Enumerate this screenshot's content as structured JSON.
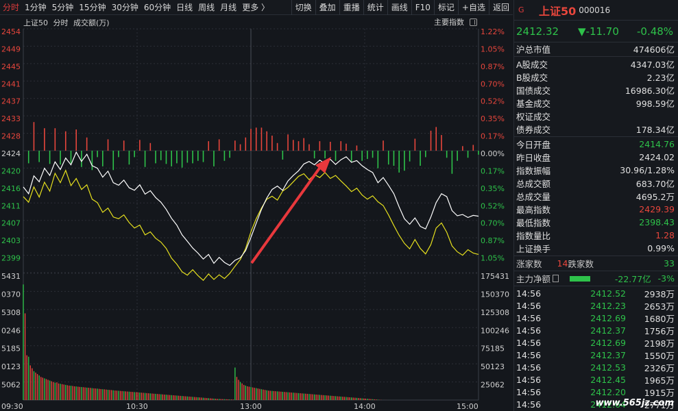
{
  "toolbar": {
    "periods": [
      "分时",
      "1分钟",
      "5分钟",
      "15分钟",
      "30分钟",
      "60分钟",
      "日线",
      "周线",
      "月线",
      "更多 〉"
    ],
    "active_period": "分时",
    "actions": [
      "切换",
      "叠加",
      "重播",
      "统计",
      "画线",
      "F10",
      "标记",
      "+自选",
      "返回"
    ]
  },
  "chart_header": {
    "index_name": "上证50",
    "mode": "分时",
    "volume_label": "成交额(万)",
    "indicator": "主要指数"
  },
  "colors": {
    "up": "#e8463c",
    "down": "#2ec24a",
    "price_line": "#ffffff",
    "avg_line": "#e6e01e",
    "arrow": "#e8383c",
    "grid": "#2c2f37"
  },
  "chart_data": {
    "type": "line",
    "price_axis": [
      "2454",
      "2449",
      "2445",
      "2441",
      "2437",
      "2433",
      "2428",
      "2424",
      "2420",
      "2416",
      "2411",
      "2407",
      "2403",
      "2399"
    ],
    "pct_axis": [
      "1.22%",
      "1.05%",
      "0.87%",
      "0.70%",
      "0.52%",
      "0.35%",
      "0.17%",
      "0.00%",
      "0.17%",
      "0.35%",
      "0.52%",
      "0.70%",
      "0.87%",
      "1.05%"
    ],
    "prev_close": 2424.02,
    "ylim": [
      2399,
      2454
    ],
    "volume_axis_left": [
      "5431",
      "0370",
      "5308",
      "0246",
      "5185",
      "0123",
      "5062"
    ],
    "volume_axis_right": [
      "175431",
      "150370",
      "125308",
      "100246",
      "75185",
      "50123",
      "25062"
    ],
    "volume_ylim": [
      0,
      175431
    ],
    "time_axis": [
      "09:30",
      "10:30",
      "13:00",
      "14:00",
      "15:00"
    ],
    "price_series": [
      [
        0,
        2419.2
      ],
      [
        3,
        2417.6
      ],
      [
        6,
        2421.8
      ],
      [
        9,
        2420.4
      ],
      [
        12,
        2423.6
      ],
      [
        15,
        2421.9
      ],
      [
        18,
        2425.1
      ],
      [
        21,
        2423.3
      ],
      [
        24,
        2426.0
      ],
      [
        27,
        2424.4
      ],
      [
        30,
        2427.4
      ],
      [
        33,
        2425.2
      ],
      [
        36,
        2426.9
      ],
      [
        39,
        2424.2
      ],
      [
        42,
        2423.6
      ],
      [
        45,
        2421.5
      ],
      [
        48,
        2422.9
      ],
      [
        51,
        2420.2
      ],
      [
        54,
        2419.6
      ],
      [
        57,
        2420.8
      ],
      [
        60,
        2419.0
      ],
      [
        63,
        2418.4
      ],
      [
        66,
        2419.7
      ],
      [
        69,
        2417.5
      ],
      [
        72,
        2418.3
      ],
      [
        75,
        2416.7
      ],
      [
        78,
        2415.6
      ],
      [
        81,
        2413.9
      ],
      [
        84,
        2411.8
      ],
      [
        87,
        2410.2
      ],
      [
        90,
        2407.9
      ],
      [
        93,
        2406.4
      ],
      [
        96,
        2404.8
      ],
      [
        99,
        2403.6
      ],
      [
        102,
        2402.2
      ],
      [
        105,
        2403.3
      ],
      [
        108,
        2401.2
      ],
      [
        111,
        2402.6
      ],
      [
        114,
        2401.4
      ],
      [
        117,
        2400.7
      ],
      [
        120,
        2401.9
      ],
      [
        123,
        2402.5
      ],
      [
        126,
        2404.2
      ],
      [
        129,
        2407.3
      ],
      [
        132,
        2410.6
      ],
      [
        135,
        2413.9
      ],
      [
        138,
        2416.6
      ],
      [
        141,
        2418.6
      ],
      [
        144,
        2419.4
      ],
      [
        147,
        2418.4
      ],
      [
        150,
        2420.6
      ],
      [
        153,
        2421.9
      ],
      [
        156,
        2423.0
      ],
      [
        159,
        2424.6
      ],
      [
        162,
        2425.2
      ],
      [
        165,
        2424.4
      ],
      [
        168,
        2425.5
      ],
      [
        171,
        2424.7
      ],
      [
        174,
        2425.7
      ],
      [
        177,
        2424.5
      ],
      [
        180,
        2425.6
      ],
      [
        183,
        2426.3
      ],
      [
        186,
        2425.0
      ],
      [
        189,
        2425.4
      ],
      [
        192,
        2424.2
      ],
      [
        195,
        2423.3
      ],
      [
        198,
        2422.6
      ],
      [
        201,
        2420.2
      ],
      [
        204,
        2421.4
      ],
      [
        207,
        2419.6
      ],
      [
        210,
        2417.6
      ],
      [
        213,
        2414.5
      ],
      [
        216,
        2411.7
      ],
      [
        219,
        2410.4
      ],
      [
        222,
        2411.9
      ],
      [
        225,
        2409.9
      ],
      [
        228,
        2409.3
      ],
      [
        231,
        2412.1
      ],
      [
        234,
        2415.5
      ],
      [
        237,
        2417.6
      ],
      [
        240,
        2416.9
      ],
      [
        243,
        2413.6
      ],
      [
        246,
        2412.4
      ],
      [
        249,
        2412.7
      ],
      [
        252,
        2412.0
      ],
      [
        255,
        2412.5
      ],
      [
        258,
        2412.3
      ]
    ],
    "avg_series": [
      [
        0,
        2416.9
      ],
      [
        3,
        2415.6
      ],
      [
        6,
        2419.2
      ],
      [
        9,
        2416.8
      ],
      [
        12,
        2420.3
      ],
      [
        15,
        2418.2
      ],
      [
        18,
        2422.4
      ],
      [
        21,
        2420.2
      ],
      [
        24,
        2423.1
      ],
      [
        27,
        2419.5
      ],
      [
        30,
        2421.2
      ],
      [
        33,
        2418.6
      ],
      [
        36,
        2419.7
      ],
      [
        39,
        2416.3
      ],
      [
        42,
        2415.5
      ],
      [
        45,
        2413.2
      ],
      [
        48,
        2414.2
      ],
      [
        51,
        2412.1
      ],
      [
        54,
        2411.7
      ],
      [
        57,
        2412.6
      ],
      [
        60,
        2410.8
      ],
      [
        63,
        2409.5
      ],
      [
        66,
        2410.2
      ],
      [
        69,
        2407.9
      ],
      [
        72,
        2408.6
      ],
      [
        75,
        2407.1
      ],
      [
        78,
        2406.2
      ],
      [
        81,
        2404.7
      ],
      [
        84,
        2402.4
      ],
      [
        87,
        2401.0
      ],
      [
        90,
        2399.2
      ],
      [
        93,
        2398.4
      ],
      [
        96,
        2399.7
      ],
      [
        99,
        2398.3
      ],
      [
        102,
        2397.2
      ],
      [
        105,
        2398.7
      ],
      [
        108,
        2397.4
      ],
      [
        111,
        2398.5
      ],
      [
        114,
        2397.6
      ],
      [
        117,
        2398.8
      ],
      [
        120,
        2400.5
      ],
      [
        123,
        2402.1
      ],
      [
        126,
        2404.7
      ],
      [
        129,
        2408.6
      ],
      [
        132,
        2411.7
      ],
      [
        135,
        2414.2
      ],
      [
        138,
        2416.3
      ],
      [
        141,
        2417.0
      ],
      [
        144,
        2416.1
      ],
      [
        147,
        2418.2
      ],
      [
        150,
        2419.1
      ],
      [
        153,
        2420.4
      ],
      [
        156,
        2421.7
      ],
      [
        159,
        2422.3
      ],
      [
        162,
        2420.9
      ],
      [
        165,
        2422.1
      ],
      [
        168,
        2421.4
      ],
      [
        171,
        2422.6
      ],
      [
        174,
        2421.2
      ],
      [
        177,
        2421.9
      ],
      [
        180,
        2420.6
      ],
      [
        183,
        2419.4
      ],
      [
        186,
        2418.1
      ],
      [
        189,
        2418.9
      ],
      [
        192,
        2417.3
      ],
      [
        195,
        2416.3
      ],
      [
        198,
        2417.1
      ],
      [
        201,
        2415.7
      ],
      [
        204,
        2414.8
      ],
      [
        207,
        2412.6
      ],
      [
        210,
        2410.1
      ],
      [
        213,
        2407.8
      ],
      [
        216,
        2405.9
      ],
      [
        219,
        2404.6
      ],
      [
        222,
        2406.8
      ],
      [
        225,
        2404.7
      ],
      [
        228,
        2403.4
      ],
      [
        231,
        2405.6
      ],
      [
        234,
        2409.5
      ],
      [
        237,
        2410.7
      ],
      [
        240,
        2408.5
      ],
      [
        243,
        2405.3
      ],
      [
        246,
        2403.9
      ],
      [
        249,
        2403.1
      ],
      [
        252,
        2404.4
      ],
      [
        255,
        2403.6
      ],
      [
        258,
        2403.3
      ]
    ],
    "volume_series": [
      160000,
      120000,
      62000,
      60000,
      48000,
      44000,
      40000,
      38000,
      36000,
      34000,
      32000,
      31000,
      30000,
      29000,
      28000,
      27000,
      26000,
      25000,
      24000,
      24500,
      23000,
      22500,
      22000,
      21500,
      21000,
      20500,
      20000,
      19800,
      19500,
      19000,
      18800,
      18500,
      18200,
      18000,
      17800,
      17500,
      17200,
      17000,
      16800,
      16500,
      16200,
      16000,
      15800,
      15500,
      15200,
      15000,
      14800,
      14500,
      14200,
      14000,
      13800,
      13500,
      13200,
      13000,
      12800,
      12600,
      12400,
      12200,
      12000,
      11800,
      11600,
      11400,
      11200,
      11000,
      10800,
      10600,
      10400,
      10200,
      10000,
      9800,
      9600,
      9400,
      9200,
      9000,
      8800,
      8600,
      8400,
      8200,
      8000,
      7800,
      7600,
      7400,
      7200,
      7000,
      6800,
      6600,
      6400,
      6200,
      6000,
      5800,
      5600,
      5400,
      5200,
      5000,
      4800,
      4600,
      4400,
      4200,
      4000,
      3800,
      3600,
      3400,
      3200,
      3000,
      2800,
      2600,
      2400,
      2200,
      2000,
      1800,
      1600,
      1500,
      1400,
      1300,
      1200,
      1100,
      1000,
      900,
      800,
      700,
      45000,
      32000,
      28000,
      25000,
      23000,
      21000,
      20000,
      19000,
      18500,
      18000,
      17500,
      17000,
      16500,
      16000,
      15500,
      15000,
      14500,
      14000,
      13500,
      13000,
      12800,
      12600,
      12400,
      12200,
      12000,
      11800,
      11600,
      11400,
      11200,
      11000,
      10800,
      10600,
      10400,
      10200,
      10000,
      9800,
      9600,
      9400,
      9200,
      9000,
      8800,
      8600,
      8400,
      8200,
      8000,
      7800,
      7600,
      7400,
      7200,
      7000,
      6800,
      6600,
      6400,
      6200,
      6000,
      5800,
      5600,
      5400,
      5200,
      5000,
      4800,
      4600,
      4400,
      4200,
      4000,
      3800,
      3600,
      3400,
      3200,
      3000,
      2800,
      2600,
      2400,
      2200,
      2000,
      1800,
      1600,
      1400,
      1200,
      1000,
      800,
      600,
      400,
      200,
      100,
      80,
      60,
      40,
      20,
      10,
      10,
      10,
      10,
      10,
      10,
      10,
      10,
      10,
      10,
      10,
      10,
      10,
      10,
      10,
      10,
      10,
      10,
      10,
      10,
      10,
      10,
      10,
      10,
      10,
      10,
      10,
      10,
      10,
      10,
      10,
      10,
      10,
      10,
      10,
      10,
      10,
      10,
      10,
      10,
      10,
      10,
      10,
      10,
      10,
      10,
      10,
      10,
      10,
      10,
      10,
      10,
      10,
      10,
      10,
      10
    ],
    "total_points": 258
  },
  "panel": {
    "marker": "G",
    "name": "上证50",
    "code": "000016",
    "price": "2412.32",
    "change": "▼-11.70",
    "change_pct": "-0.48%",
    "stats1": [
      {
        "label": "沪总市值",
        "value": "474606亿"
      }
    ],
    "stats2": [
      {
        "label": "A股成交",
        "value": "4347.03亿"
      },
      {
        "label": "B股成交",
        "value": "2.23亿"
      },
      {
        "label": "国债成交",
        "value": "16986.30亿"
      },
      {
        "label": "基金成交",
        "value": "998.59亿"
      },
      {
        "label": "权证成交",
        "value": ""
      },
      {
        "label": "债券成交",
        "value": "178.34亿"
      }
    ],
    "stats3": [
      {
        "label": "今日开盘",
        "value": "2414.76",
        "color": "green"
      },
      {
        "label": "昨日收盘",
        "value": "2424.02",
        "color": ""
      },
      {
        "label": "指数振幅",
        "value": "30.96/1.28%",
        "color": ""
      },
      {
        "label": "总成交额",
        "value": "683.70亿",
        "color": ""
      },
      {
        "label": "总成交量",
        "value": "4695.2万",
        "color": ""
      },
      {
        "label": "最高指数",
        "value": "2429.39",
        "color": "red"
      },
      {
        "label": "最低指数",
        "value": "2398.43",
        "color": "green"
      },
      {
        "label": "指数量比",
        "value": "1.28",
        "color": "red"
      },
      {
        "label": "上证换手",
        "value": "0.99%",
        "color": ""
      }
    ],
    "updown": {
      "up_label": "涨家数",
      "up": "14",
      "down_label": "跌家数",
      "down": "33"
    },
    "flow": {
      "label": "主力净额",
      "amount": "-22.77亿",
      "pct": "-3%"
    },
    "ticks": [
      {
        "time": "14:56",
        "price": "2412.52",
        "vol": "2938万"
      },
      {
        "time": "14:56",
        "price": "2412.23",
        "vol": "2653万"
      },
      {
        "time": "14:56",
        "price": "2412.69",
        "vol": "1680万"
      },
      {
        "time": "14:56",
        "price": "2412.37",
        "vol": "1756万"
      },
      {
        "time": "14:56",
        "price": "2412.69",
        "vol": "2198万"
      },
      {
        "time": "14:56",
        "price": "2412.37",
        "vol": "1550万"
      },
      {
        "time": "14:56",
        "price": "2412.53",
        "vol": "2326万"
      },
      {
        "time": "14:56",
        "price": "2412.45",
        "vol": "1965万"
      },
      {
        "time": "14:56",
        "price": "2412.20",
        "vol": "1915万"
      },
      {
        "time": "14:56",
        "price": "2412.64",
        "vol": "2771万"
      }
    ],
    "watermark": "www.565jz.com"
  }
}
